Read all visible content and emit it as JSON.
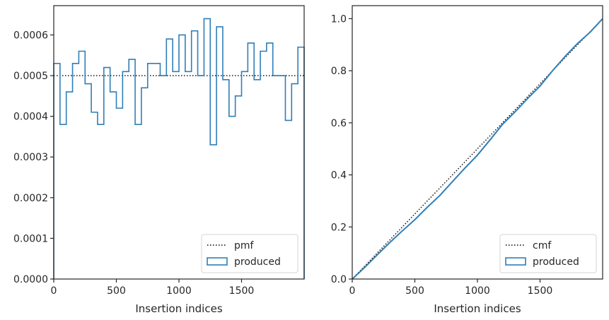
{
  "chart_data": [
    {
      "type": "line",
      "xlabel": "Insertion indices",
      "ylabel": "",
      "xlim": [
        0,
        2000
      ],
      "ylim": [
        0,
        0.000672
      ],
      "xticks": [
        0,
        500,
        1000,
        1500
      ],
      "xtick_labels": [
        "0",
        "500",
        "1000",
        "1500"
      ],
      "yticks": [
        0,
        0.0001,
        0.0002,
        0.0003,
        0.0004,
        0.0005,
        0.0006
      ],
      "ytick_labels": [
        "0.0000",
        "0.0001",
        "0.0002",
        "0.0003",
        "0.0004",
        "0.0005",
        "0.0006"
      ],
      "grid": false,
      "legend_placement": "lower-right",
      "series": [
        {
          "name": "pmf",
          "style": "dotted",
          "color": "#000000",
          "x": [
            0,
            2000
          ],
          "y": [
            0.0005,
            0.0005
          ]
        },
        {
          "name": "produced",
          "style": "step-histogram",
          "color": "#2f7fb8",
          "bin_edges": [
            0,
            50,
            100,
            150,
            200,
            250,
            300,
            350,
            400,
            450,
            500,
            550,
            600,
            650,
            700,
            750,
            800,
            850,
            900,
            950,
            1000,
            1050,
            1100,
            1150,
            1200,
            1250,
            1300,
            1350,
            1400,
            1450,
            1500,
            1550,
            1600,
            1650,
            1700,
            1750,
            1800,
            1850,
            1900,
            1950,
            2000
          ],
          "values": [
            0.00053,
            0.00038,
            0.00046,
            0.00053,
            0.00056,
            0.00048,
            0.00041,
            0.00038,
            0.00052,
            0.00046,
            0.00042,
            0.00051,
            0.00054,
            0.00038,
            0.00047,
            0.00053,
            0.00053,
            0.0005,
            0.00059,
            0.00051,
            0.0006,
            0.00051,
            0.00061,
            0.0005,
            0.00064,
            0.00033,
            0.00062,
            0.00049,
            0.0004,
            0.00045,
            0.00051,
            0.00058,
            0.00049,
            0.00056,
            0.00058,
            0.0005,
            0.0005,
            0.00039,
            0.00048,
            0.00057
          ]
        }
      ]
    },
    {
      "type": "line",
      "xlabel": "Insertion indices",
      "ylabel": "",
      "xlim": [
        0,
        2000
      ],
      "ylim": [
        0,
        1.05
      ],
      "xticks": [
        0,
        500,
        1000,
        1500
      ],
      "xtick_labels": [
        "0",
        "500",
        "1000",
        "1500"
      ],
      "yticks": [
        0,
        0.2,
        0.4,
        0.6,
        0.8,
        1.0
      ],
      "ytick_labels": [
        "0.0",
        "0.2",
        "0.4",
        "0.6",
        "0.8",
        "1.0"
      ],
      "grid": false,
      "legend_placement": "lower-right",
      "series": [
        {
          "name": "cmf",
          "style": "dotted",
          "color": "#000000",
          "x": [
            0,
            2000
          ],
          "y": [
            0,
            1.0
          ]
        },
        {
          "name": "produced",
          "style": "solid",
          "color": "#2f7fb8",
          "x": [
            0,
            100,
            200,
            300,
            400,
            500,
            600,
            700,
            800,
            900,
            1000,
            1100,
            1200,
            1300,
            1400,
            1500,
            1600,
            1700,
            1800,
            1900,
            2000
          ],
          "y": [
            0,
            0.045,
            0.093,
            0.14,
            0.185,
            0.228,
            0.276,
            0.321,
            0.374,
            0.426,
            0.476,
            0.534,
            0.594,
            0.642,
            0.693,
            0.741,
            0.8,
            0.855,
            0.905,
            0.948,
            1.0
          ]
        }
      ]
    }
  ]
}
